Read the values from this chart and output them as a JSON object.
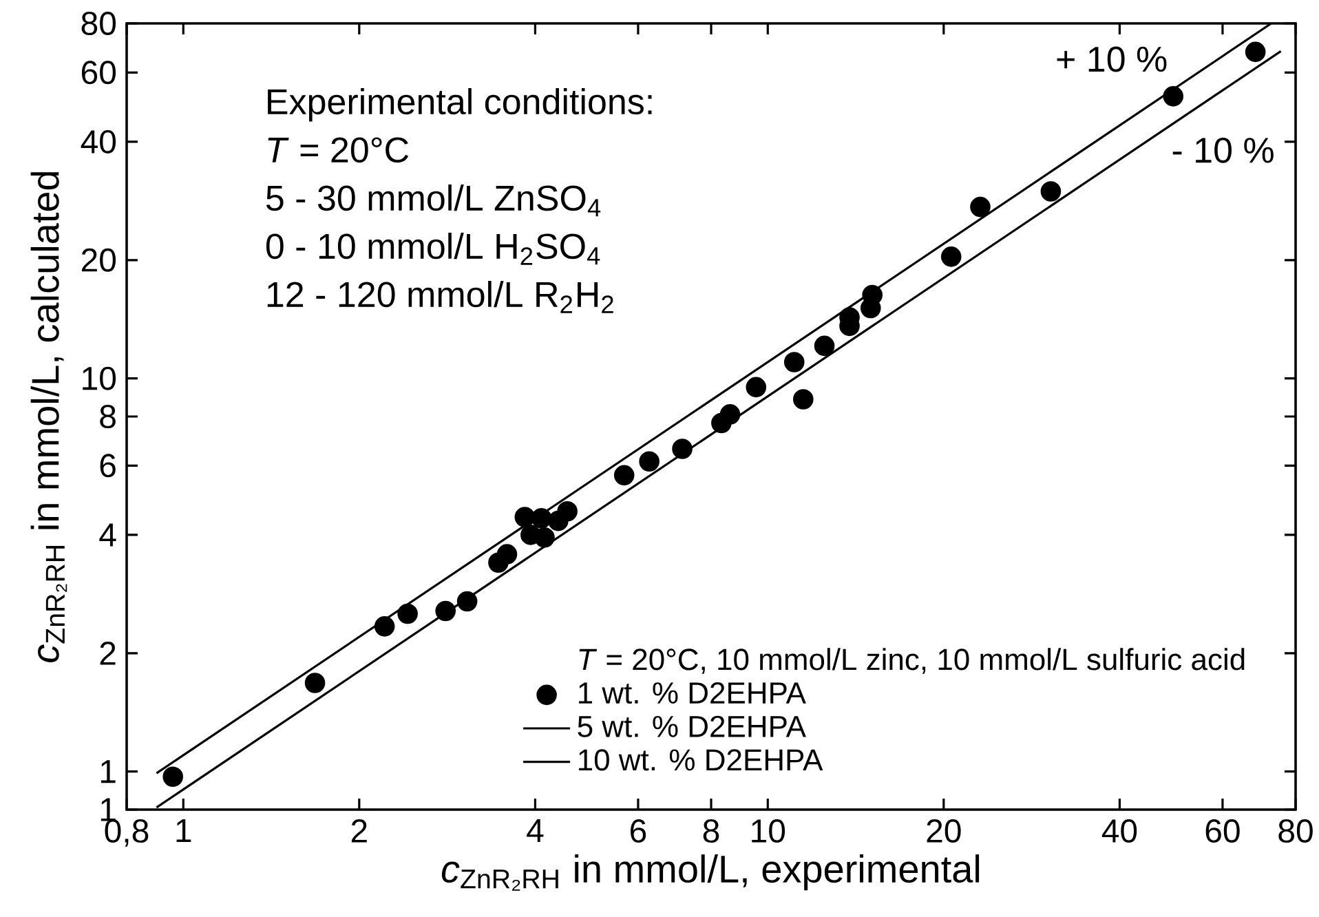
{
  "chart_data": {
    "type": "scatter",
    "log": "xy",
    "xlabel": "*c*$_{ZnR₂RH}$ in mmol/L, experimental",
    "ylabel": "*c*$_{ZnR₂RH}$ in mmol/L, calculated",
    "legend_title": "*T* = 20°C, 10 mmol/L zinc, 10 mmol/L sulfuric acid",
    "legend": "bottom right",
    "xlim": [
      0.8,
      80
    ],
    "ylim": [
      0.8,
      80
    ],
    "xticks": [
      {
        "value": 0.8,
        "label": "0,8"
      },
      1,
      2,
      4,
      6,
      8,
      10,
      20,
      40,
      60,
      80
    ],
    "yticks": [
      {
        "value": 0.8,
        "label": "1"
      },
      1,
      2,
      4,
      6,
      8,
      10,
      20,
      40,
      60,
      80
    ],
    "annotations": [
      "Experimental conditions:",
      "*T* = 20°C",
      "5 - 30 mmol/L ZnSO$_{4}$",
      "0 - 10 mmol/L H$_{2}$SO$_{4}$",
      "12 - 120 mmol/L R$_{2}$H$_{2}$",
      "+ 10 %",
      "- 10 %"
    ],
    "series": [
      {
        "name": "1 wt. % D2EHPA",
        "marker": "circle",
        "color": "#000000",
        "x": [
          0.96,
          1.68,
          2.21,
          2.42,
          2.81,
          3.06,
          3.46,
          3.58,
          3.84,
          3.93,
          4.1,
          4.15,
          4.54,
          4.38,
          5.68,
          6.27,
          7.14,
          8.33,
          8.62,
          9.55,
          11.1,
          11.5,
          12.5,
          13.8,
          13.8,
          15.0,
          15.1,
          20.6,
          23.1,
          30.5,
          49.4,
          68.3
        ],
        "values": [
          0.97,
          1.68,
          2.34,
          2.52,
          2.56,
          2.71,
          3.4,
          3.57,
          4.44,
          4.0,
          4.41,
          3.94,
          4.59,
          4.34,
          5.67,
          6.15,
          6.62,
          7.7,
          8.1,
          9.5,
          11.0,
          8.85,
          12.1,
          13.6,
          14.3,
          15.1,
          16.3,
          20.4,
          27.3,
          29.9,
          52.2,
          67.7
        ]
      },
      {
        "name": "5 wt. % D2EHPA",
        "type": "line",
        "color": "#000000",
        "x": [
          0.9,
          72.7
        ],
        "values": [
          0.99,
          80
        ]
      },
      {
        "name": "10 wt. % D2EHPA",
        "type": "line",
        "color": "#000000",
        "x": [
          0.9,
          75.5
        ],
        "values": [
          0.81,
          68
        ]
      }
    ]
  }
}
